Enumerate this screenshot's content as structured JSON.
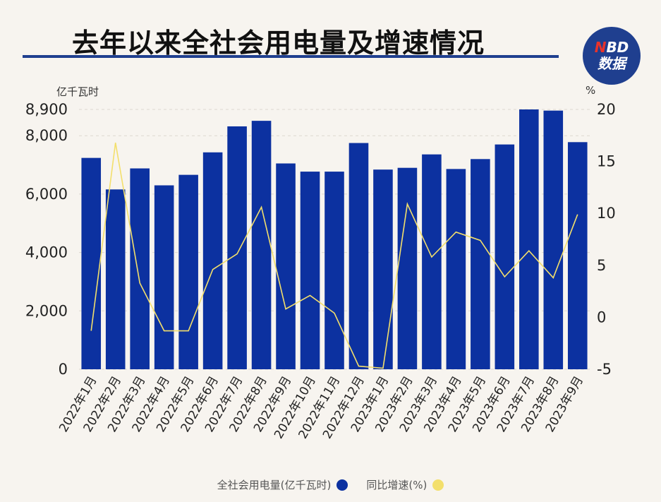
{
  "title": "去年以来全社会用电量及增速情况",
  "logo": {
    "top_n": "N",
    "top_rest": "BD",
    "bottom": "数据"
  },
  "units": {
    "left": "亿千瓦时",
    "right": "%"
  },
  "colors": {
    "bar": "#0c31a0",
    "line": "#f3df6b",
    "title_rule": "#1f3f8f"
  },
  "chart_data": {
    "type": "bar",
    "categories": [
      "2022年1月",
      "2022年2月",
      "2022年3月",
      "2022年4月",
      "2022年5月",
      "2022年6月",
      "2022年7月",
      "2022年8月",
      "2022年9月",
      "2022年10月",
      "2022年11月",
      "2022年12月",
      "2023年1月",
      "2023年2月",
      "2023年3月",
      "2023年4月",
      "2023年5月",
      "2023年6月",
      "2023年7月",
      "2023年8月",
      "2023年9月"
    ],
    "series": [
      {
        "name": "全社会用电量(亿千瓦时)",
        "axis": "left",
        "type": "bar",
        "values": [
          7240,
          6160,
          6880,
          6300,
          6660,
          7430,
          8320,
          8510,
          7050,
          6770,
          6770,
          7750,
          6840,
          6900,
          7360,
          6860,
          7200,
          7700,
          8900,
          8860,
          7780
        ]
      },
      {
        "name": "同比增速(%)",
        "axis": "right",
        "type": "line",
        "values": [
          -1.3,
          16.8,
          3.3,
          -1.3,
          -1.3,
          4.6,
          6.1,
          10.6,
          0.8,
          2.1,
          0.4,
          -4.7,
          -4.9,
          10.9,
          5.8,
          8.2,
          7.4,
          3.9,
          6.4,
          3.8,
          9.9
        ]
      }
    ],
    "left_axis": {
      "ylim": [
        0,
        8900
      ],
      "ticks": [
        "0",
        "2,000",
        "4,000",
        "6,000",
        "8,000",
        "8,900"
      ],
      "tick_values": [
        0,
        2000,
        4000,
        6000,
        8000,
        8900
      ]
    },
    "right_axis": {
      "ylim": [
        -5,
        20
      ],
      "ticks": [
        "-5",
        "0",
        "5",
        "10",
        "15",
        "20"
      ],
      "tick_values": [
        -5,
        0,
        5,
        10,
        15,
        20
      ]
    },
    "grid": true,
    "legend_position": "bottom"
  }
}
